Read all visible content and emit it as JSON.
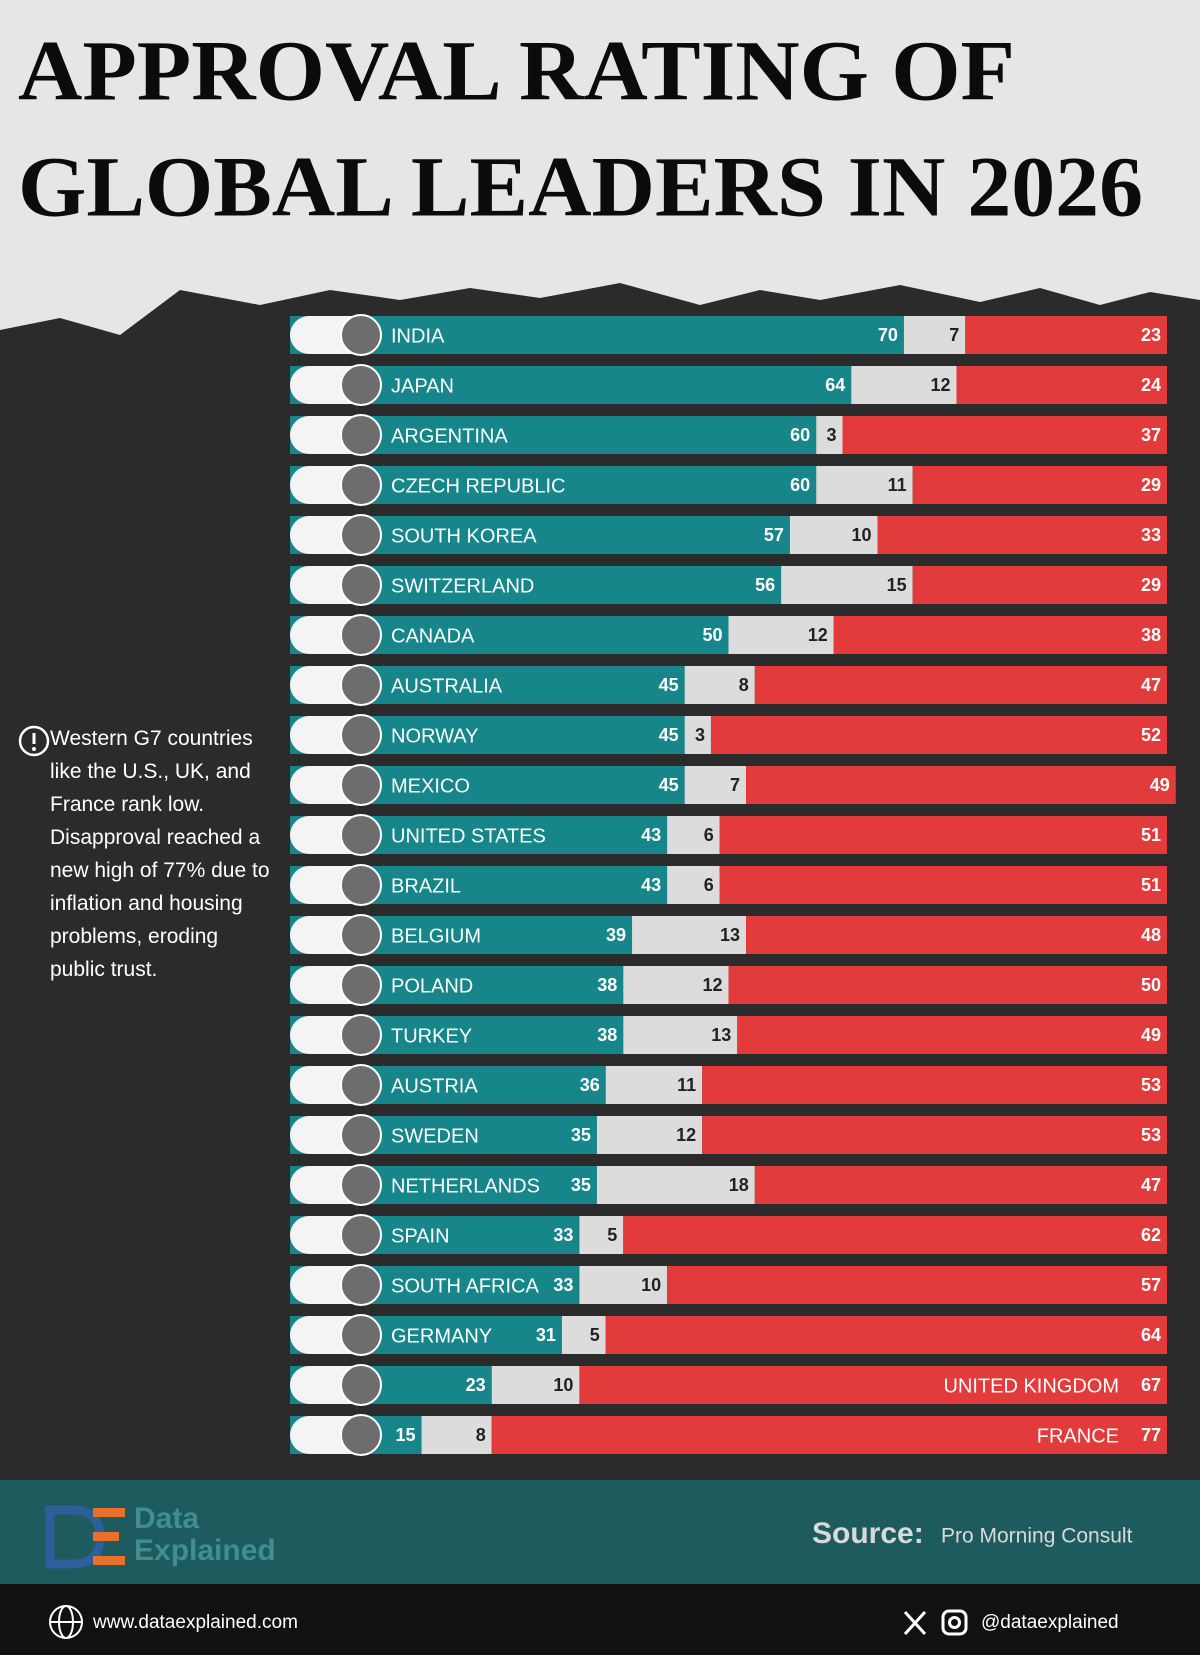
{
  "chart_data": {
    "type": "stacked-bar-horizontal",
    "title": [
      "APPROVAL RATING OF",
      "GLOBAL LEADERS IN 2026"
    ],
    "annotation": "Western G7 countries like the U.S., UK, and France rank low. Disapproval reached a new high of 77% due to inflation and housing problems, eroding public trust.",
    "categories": [
      "INDIA",
      "JAPAN",
      "ARGENTINA",
      "CZECH REPUBLIC",
      "SOUTH KOREA",
      "SWITZERLAND",
      "CANADA",
      "AUSTRALIA",
      "NORWAY",
      "MEXICO",
      "UNITED STATES",
      "BRAZIL",
      "BELGIUM",
      "POLAND",
      "TURKEY",
      "AUSTRIA",
      "SWEDEN",
      "NETHERLANDS",
      "SPAIN",
      "SOUTH AFRICA",
      "GERMANY",
      "UNITED KINGDOM",
      "FRANCE"
    ],
    "xlim": [
      0,
      100
    ],
    "series": [
      {
        "color": "#17868b",
        "values": [
          70,
          64,
          60,
          60,
          57,
          56,
          50,
          45,
          45,
          45,
          43,
          43,
          39,
          38,
          38,
          36,
          35,
          35,
          33,
          33,
          31,
          23,
          15
        ]
      },
      {
        "color": "#dcdcdc",
        "values": [
          7,
          12,
          3,
          11,
          10,
          15,
          12,
          8,
          3,
          7,
          6,
          6,
          13,
          12,
          13,
          11,
          12,
          18,
          5,
          10,
          5,
          10,
          8
        ]
      },
      {
        "color": "#e33b3b",
        "values": [
          23,
          24,
          37,
          29,
          33,
          29,
          38,
          47,
          52,
          49,
          51,
          51,
          48,
          50,
          49,
          53,
          53,
          47,
          62,
          57,
          64,
          67,
          77
        ]
      }
    ]
  },
  "footer": {
    "brand": [
      "Data",
      "Explained"
    ],
    "source_label": "Source:",
    "source": "Pro Morning Consult",
    "website": "www.dataexplained.com",
    "handle": "@dataexplained"
  }
}
